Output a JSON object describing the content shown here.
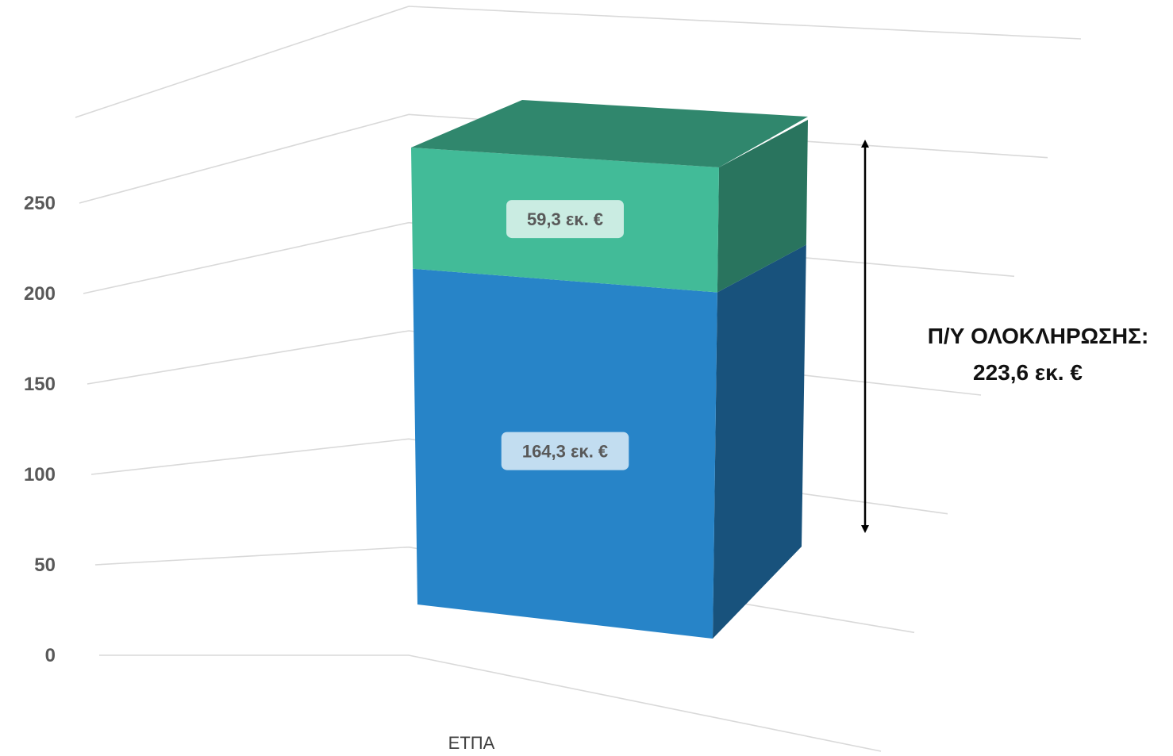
{
  "chart_data": {
    "type": "bar",
    "stacked": true,
    "three_d": true,
    "categories": [
      "ΕΤΠΑ"
    ],
    "series": [
      {
        "values": [
          164.3
        ],
        "label": "164,3 εκ. €",
        "color": "#2784c8"
      },
      {
        "values": [
          59.3
        ],
        "label": "59,3 εκ. €",
        "color": "#42bb98"
      }
    ],
    "ylim": [
      0,
      250
    ],
    "yticks": [
      "0",
      "50",
      "100",
      "150",
      "200",
      "250"
    ],
    "grid": true,
    "annotation": {
      "line1": "Π/Υ ΟΛΟΚΛΗΡΩΣΗΣ:",
      "line2": "223,6 εκ. €"
    }
  }
}
